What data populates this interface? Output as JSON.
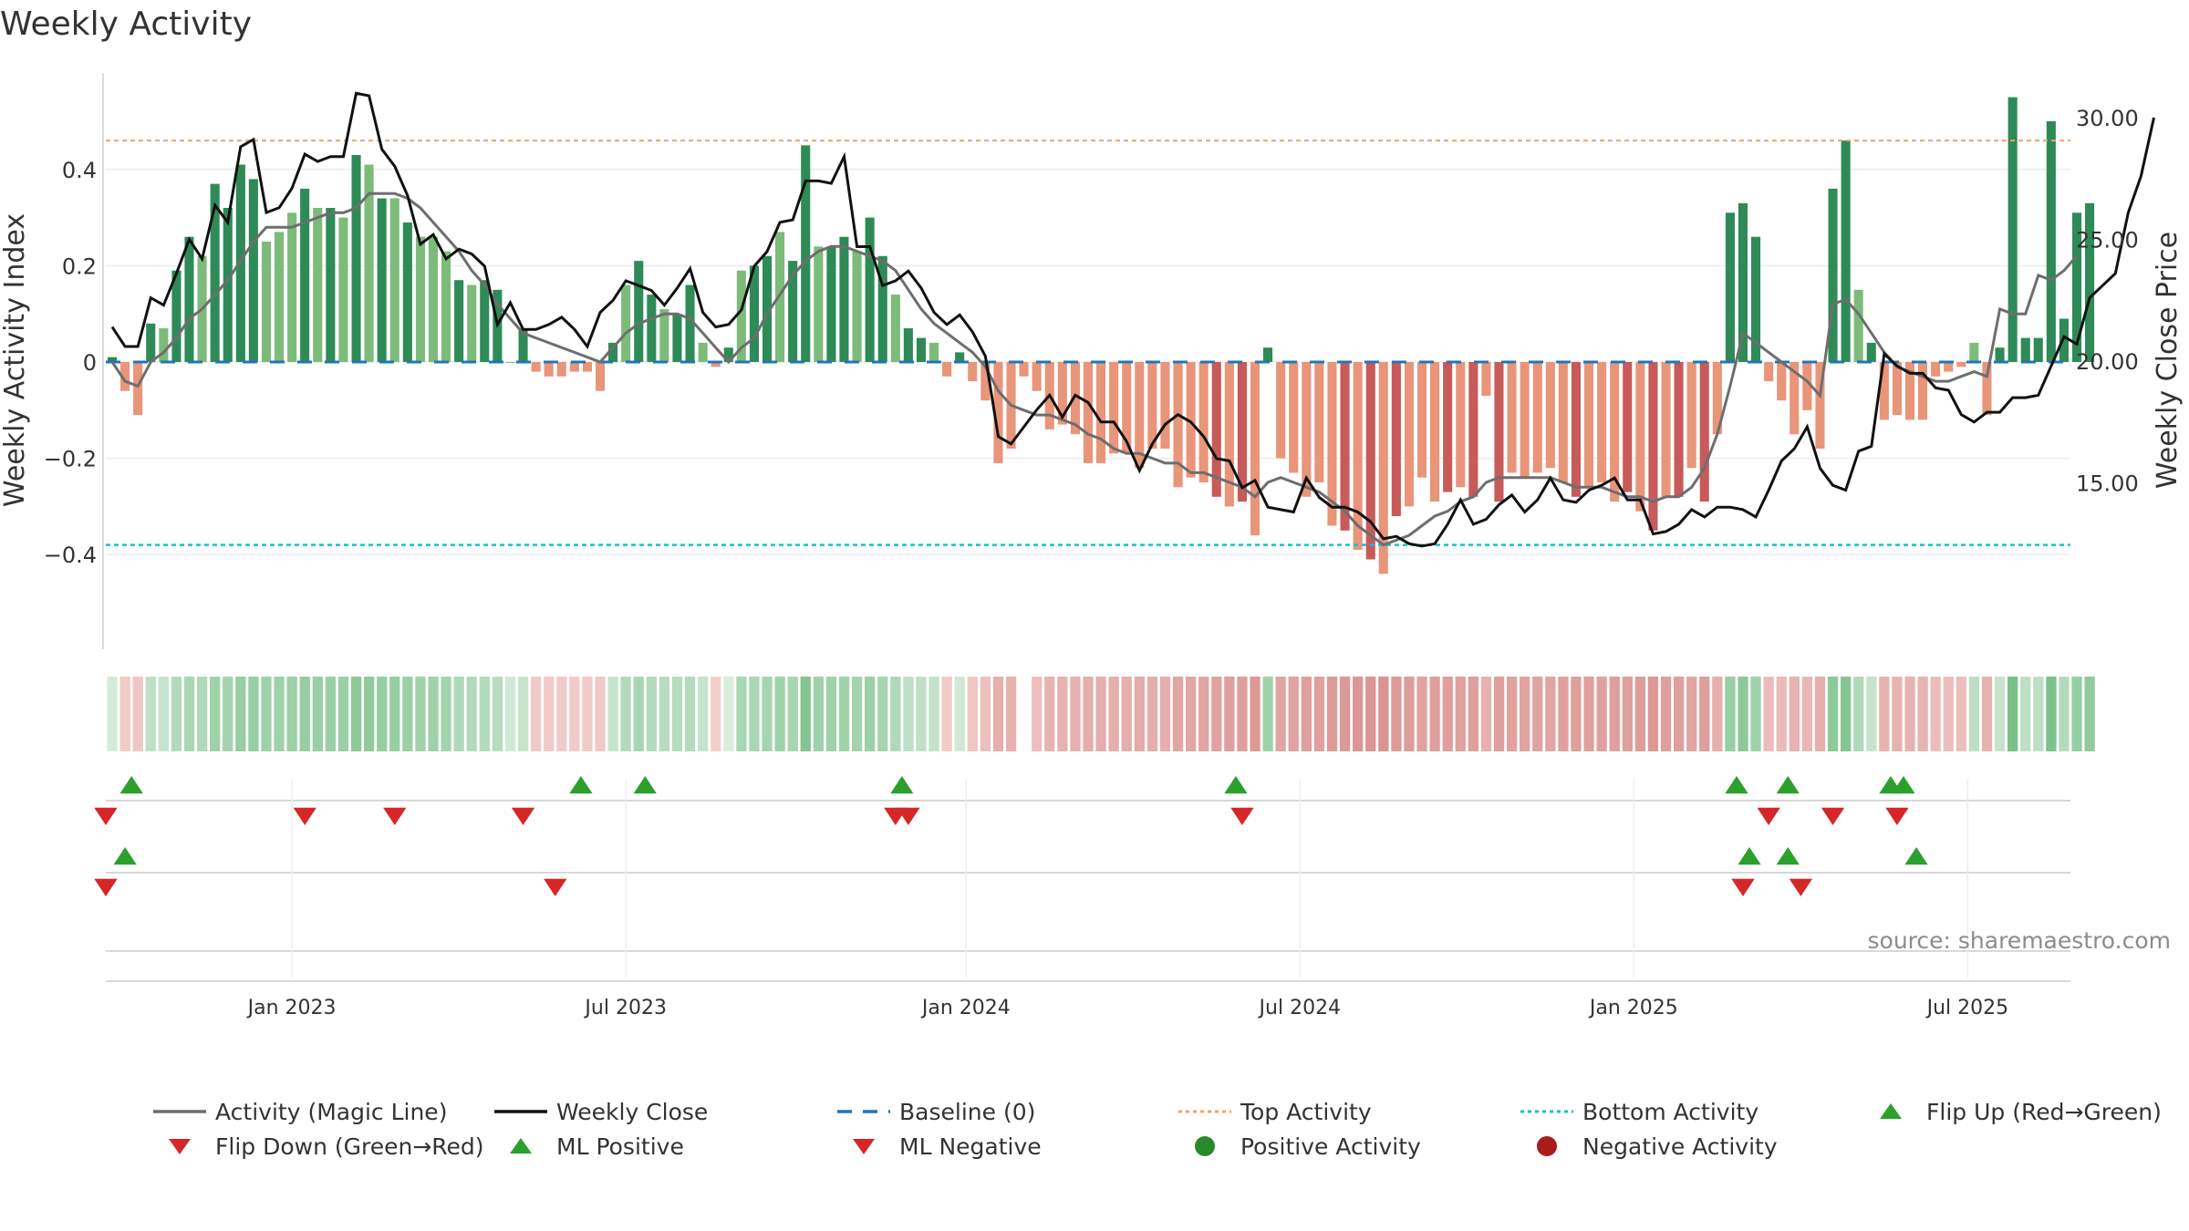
{
  "chart_data": {
    "type": "bar",
    "title": "Weekly Activity",
    "ylabel": "Weekly Activity Index",
    "y2label": "Weekly Close Price",
    "source": "source: sharemaestro.com",
    "ylim": [
      -0.6,
      0.6
    ],
    "y2lim": [
      10.8,
      32.6
    ],
    "yticks": [
      "0.4",
      "0.2",
      "0",
      "−0.2",
      "−0.4"
    ],
    "yticks_values": [
      0.4,
      0.2,
      0,
      -0.2,
      -0.4
    ],
    "y2ticks": [
      "30.00",
      "25.00",
      "20.00",
      "15.00"
    ],
    "y2ticks_values": [
      30,
      25,
      20,
      15
    ],
    "xticks": [
      "Jan 2023",
      "Jul 2023",
      "Jan 2024",
      "Jul 2024",
      "Jan 2025",
      "Jul 2025"
    ],
    "xticks_weeks": [
      15,
      41,
      67.5,
      93.5,
      119.5,
      145.5
    ],
    "start_date": "2022-09-26",
    "top_activity": 0.46,
    "bottom_activity": -0.38,
    "activity": [
      0.01,
      -0.06,
      -0.11,
      0.08,
      0.07,
      0.19,
      0.26,
      0.22,
      0.37,
      0.32,
      0.41,
      0.38,
      0.25,
      0.27,
      0.31,
      0.36,
      0.32,
      0.32,
      0.3,
      0.43,
      0.41,
      0.34,
      0.34,
      0.29,
      0.26,
      0.26,
      0.23,
      0.17,
      0.16,
      0.17,
      0.15,
      0.0,
      0.07,
      -0.02,
      -0.03,
      -0.03,
      -0.02,
      -0.02,
      -0.06,
      0.04,
      0.16,
      0.21,
      0.14,
      0.11,
      0.1,
      0.16,
      0.04,
      -0.01,
      0.03,
      0.19,
      0.2,
      0.22,
      0.27,
      0.21,
      0.45,
      0.24,
      0.24,
      0.26,
      0.23,
      0.3,
      0.22,
      0.14,
      0.07,
      0.05,
      0.04,
      -0.03,
      0.02,
      -0.04,
      -0.08,
      -0.21,
      -0.18,
      -0.03,
      -0.06,
      -0.14,
      -0.13,
      -0.15,
      -0.21,
      -0.21,
      -0.19,
      -0.19,
      -0.22,
      -0.18,
      -0.18,
      -0.26,
      -0.24,
      -0.25,
      -0.28,
      -0.3,
      -0.29,
      -0.36,
      0.03,
      -0.2,
      -0.23,
      -0.28,
      -0.25,
      -0.34,
      -0.35,
      -0.39,
      -0.41,
      -0.44,
      -0.32,
      -0.3,
      -0.24,
      -0.29,
      -0.27,
      -0.26,
      -0.28,
      -0.07,
      -0.29,
      -0.23,
      -0.24,
      -0.23,
      -0.22,
      -0.25,
      -0.28,
      -0.26,
      -0.25,
      -0.29,
      -0.27,
      -0.31,
      -0.35,
      -0.28,
      -0.28,
      -0.22,
      -0.29,
      -0.15,
      0.31,
      0.33,
      0.26,
      -0.04,
      -0.08,
      -0.15,
      -0.1,
      -0.18,
      0.36,
      0.46,
      0.15,
      0.04,
      -0.12,
      -0.11,
      -0.12,
      -0.12,
      -0.03,
      -0.02,
      -0.01,
      0.04,
      -0.11,
      0.03,
      0.55,
      0.05,
      0.05,
      0.5,
      0.09,
      0.31,
      0.33
    ],
    "magic_line": [
      0.0,
      -0.04,
      -0.05,
      0.0,
      0.02,
      0.05,
      0.09,
      0.11,
      0.14,
      0.17,
      0.21,
      0.25,
      0.28,
      0.28,
      0.28,
      0.29,
      0.3,
      0.31,
      0.31,
      0.32,
      0.35,
      0.35,
      0.35,
      0.34,
      0.32,
      0.29,
      0.26,
      0.23,
      0.19,
      0.16,
      0.12,
      0.09,
      0.06,
      0.05,
      0.04,
      0.03,
      0.02,
      0.01,
      0.0,
      0.03,
      0.06,
      0.08,
      0.09,
      0.1,
      0.1,
      0.09,
      0.06,
      0.03,
      0.0,
      0.03,
      0.05,
      0.1,
      0.14,
      0.18,
      0.21,
      0.23,
      0.24,
      0.24,
      0.23,
      0.22,
      0.21,
      0.19,
      0.15,
      0.11,
      0.08,
      0.06,
      0.04,
      0.02,
      -0.01,
      -0.06,
      -0.09,
      -0.1,
      -0.11,
      -0.11,
      -0.12,
      -0.13,
      -0.15,
      -0.16,
      -0.18,
      -0.19,
      -0.19,
      -0.2,
      -0.21,
      -0.21,
      -0.23,
      -0.23,
      -0.24,
      -0.25,
      -0.26,
      -0.28,
      -0.25,
      -0.24,
      -0.25,
      -0.26,
      -0.27,
      -0.29,
      -0.31,
      -0.34,
      -0.36,
      -0.38,
      -0.37,
      -0.36,
      -0.34,
      -0.32,
      -0.31,
      -0.29,
      -0.28,
      -0.25,
      -0.24,
      -0.24,
      -0.24,
      -0.24,
      -0.24,
      -0.25,
      -0.26,
      -0.26,
      -0.26,
      -0.27,
      -0.28,
      -0.28,
      -0.29,
      -0.28,
      -0.28,
      -0.26,
      -0.22,
      -0.15,
      -0.05,
      0.06,
      0.04,
      0.02,
      0.0,
      -0.02,
      -0.04,
      -0.07,
      0.12,
      0.13,
      0.1,
      0.06,
      0.02,
      -0.01,
      -0.02,
      -0.03,
      -0.04,
      -0.04,
      -0.03,
      -0.02,
      -0.03,
      0.11,
      0.1,
      0.1,
      0.18,
      0.17,
      0.19,
      0.22
    ],
    "weekly_close": [
      21.4,
      20.6,
      20.6,
      22.6,
      22.3,
      23.6,
      25.0,
      24.2,
      26.4,
      25.7,
      28.8,
      29.1,
      26.1,
      26.3,
      27.1,
      28.5,
      28.2,
      28.4,
      28.4,
      31.0,
      30.9,
      28.7,
      28.0,
      26.8,
      24.8,
      25.2,
      24.2,
      24.6,
      24.4,
      23.9,
      21.5,
      22.4,
      21.3,
      21.3,
      21.5,
      21.8,
      21.3,
      20.6,
      22.0,
      22.5,
      23.3,
      23.1,
      22.9,
      22.3,
      23.0,
      23.8,
      22.0,
      21.4,
      21.5,
      22.1,
      23.9,
      24.5,
      25.7,
      25.8,
      27.4,
      27.4,
      27.3,
      28.4,
      24.7,
      24.7,
      23.1,
      23.3,
      23.7,
      23.0,
      22.0,
      21.5,
      21.9,
      21.2,
      20.2,
      16.9,
      16.6,
      17.3,
      18.0,
      18.6,
      17.7,
      18.6,
      18.3,
      17.5,
      17.5,
      16.7,
      15.5,
      16.6,
      17.4,
      17.8,
      17.5,
      16.9,
      16.0,
      15.9,
      14.8,
      15.1,
      14.0,
      13.9,
      13.8,
      15.2,
      14.4,
      14.0,
      14.0,
      13.8,
      13.4,
      12.7,
      12.8,
      12.5,
      12.4,
      12.5,
      13.3,
      14.3,
      13.3,
      13.5,
      14.1,
      14.5,
      13.8,
      14.3,
      15.2,
      14.3,
      14.2,
      14.7,
      14.9,
      15.2,
      14.3,
      14.3,
      12.9,
      13.0,
      13.3,
      13.9,
      13.6,
      14.0,
      14.0,
      13.9,
      13.6,
      14.7,
      15.9,
      16.4,
      17.3,
      15.6,
      14.9,
      14.7,
      16.3,
      16.5,
      20.3,
      19.8,
      19.5,
      19.5,
      18.9,
      18.8,
      17.8,
      17.5,
      17.9,
      17.9,
      18.5,
      18.5,
      18.6,
      19.8,
      21.0,
      20.7,
      22.6,
      23.1,
      23.6,
      26.1,
      27.6,
      30.0
    ],
    "strip_shades": [
      0.22,
      -0.18,
      -0.22,
      0.35,
      0.3,
      0.4,
      0.45,
      0.42,
      0.5,
      0.48,
      0.55,
      0.55,
      0.5,
      0.5,
      0.52,
      0.55,
      0.53,
      0.53,
      0.52,
      0.6,
      0.58,
      0.55,
      0.55,
      0.52,
      0.5,
      0.5,
      0.48,
      0.42,
      0.4,
      0.4,
      0.38,
      0.25,
      0.3,
      -0.18,
      -0.18,
      -0.18,
      -0.18,
      -0.18,
      -0.2,
      0.3,
      0.4,
      0.45,
      0.4,
      0.38,
      0.38,
      0.4,
      0.3,
      -0.15,
      0.2,
      0.45,
      0.45,
      0.47,
      0.5,
      0.46,
      0.65,
      0.5,
      0.5,
      0.5,
      0.48,
      0.52,
      0.47,
      0.42,
      0.35,
      0.33,
      0.32,
      -0.18,
      0.25,
      -0.22,
      -0.28,
      -0.42,
      -0.4,
      0.0,
      -0.28,
      -0.38,
      -0.38,
      -0.4,
      -0.42,
      -0.42,
      -0.42,
      -0.42,
      -0.45,
      -0.42,
      -0.42,
      -0.5,
      -0.48,
      -0.5,
      -0.52,
      -0.55,
      -0.55,
      -0.6,
      0.5,
      -0.5,
      -0.52,
      -0.55,
      -0.53,
      -0.58,
      -0.6,
      -0.62,
      -0.63,
      -0.65,
      -0.58,
      -0.57,
      -0.52,
      -0.55,
      -0.54,
      -0.53,
      -0.55,
      -0.4,
      -0.55,
      -0.52,
      -0.52,
      -0.52,
      -0.5,
      -0.53,
      -0.55,
      -0.54,
      -0.53,
      -0.55,
      -0.54,
      -0.57,
      -0.6,
      -0.55,
      -0.55,
      -0.5,
      -0.55,
      -0.42,
      0.55,
      0.6,
      0.5,
      -0.3,
      -0.32,
      -0.38,
      -0.35,
      -0.42,
      0.6,
      0.65,
      0.42,
      0.3,
      -0.38,
      -0.38,
      -0.38,
      -0.38,
      -0.3,
      -0.28,
      -0.28,
      0.35,
      -0.38,
      0.3,
      0.7,
      0.35,
      0.35,
      0.68,
      0.4,
      0.55,
      0.58
    ],
    "flip_up_weeks": [
      2.5,
      37.5,
      42.5,
      62.5,
      88.5,
      127.5,
      131.5,
      139.5,
      140.5
    ],
    "flip_down_weeks": [
      0.5,
      16,
      23,
      33,
      62,
      63,
      89,
      130,
      135,
      140
    ],
    "ml_positive_weeks": [
      2,
      128.5,
      131.5,
      141.5
    ],
    "ml_negative_weeks": [
      0.5,
      35.5,
      128,
      132.5
    ],
    "legend": [
      {
        "label": "Activity (Magic Line)",
        "kind": "line",
        "color": "#6e6e6e"
      },
      {
        "label": "Weekly Close",
        "kind": "line",
        "color": "#111111"
      },
      {
        "label": "Baseline (0)",
        "kind": "dash",
        "color": "#1f77b4"
      },
      {
        "label": "Top Activity",
        "kind": "dot",
        "color": "#f4a261"
      },
      {
        "label": "Bottom Activity",
        "kind": "dot",
        "color": "#17becf"
      },
      {
        "label": "Flip Up (Red→Green)",
        "kind": "tri-up",
        "color": "#2ca02c"
      },
      {
        "label": "Flip Down (Green→Red)",
        "kind": "tri-down",
        "color": "#d62728"
      },
      {
        "label": "ML Positive",
        "kind": "tri-up",
        "color": "#2ca02c"
      },
      {
        "label": "ML Negative",
        "kind": "tri-down",
        "color": "#d62728"
      },
      {
        "label": "Positive Activity",
        "kind": "circle",
        "color": "#2a8a2a"
      },
      {
        "label": "Negative Activity",
        "kind": "circle",
        "color": "#a81c1c"
      }
    ],
    "legend_placement": "bottom"
  }
}
